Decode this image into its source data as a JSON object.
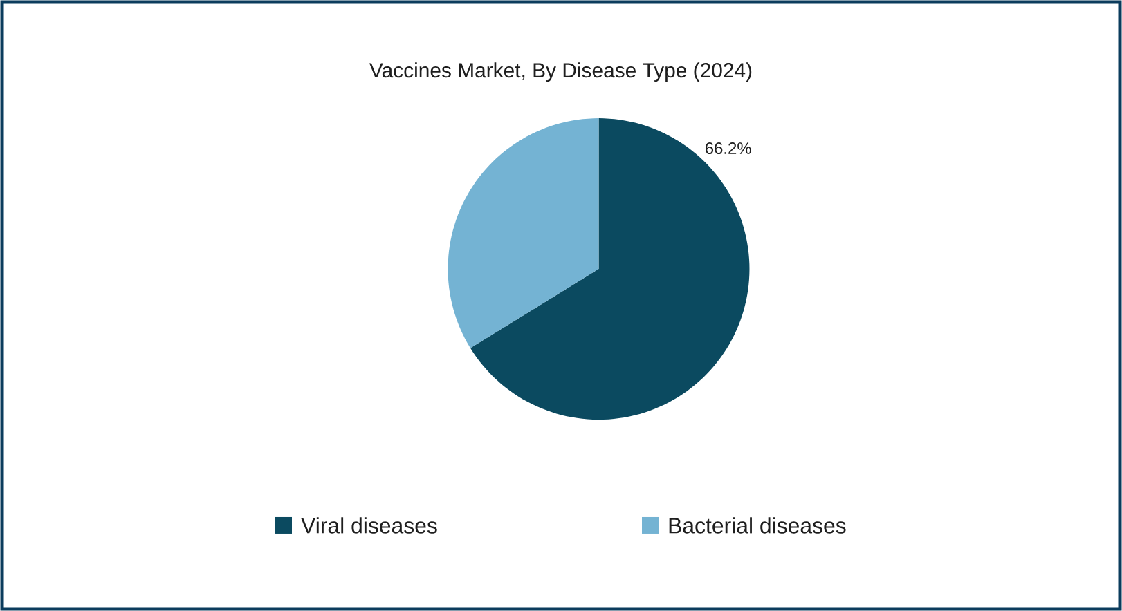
{
  "chart_data": {
    "type": "pie",
    "title": "Vaccines Market, By Disease Type (2024)",
    "categories": [
      "Viral diseases",
      "Bacterial diseases"
    ],
    "values": [
      66.2,
      33.8
    ],
    "colors": [
      "#0b4a60",
      "#74b3d3"
    ],
    "value_labels": [
      "66.2%",
      null
    ],
    "legend": "bottom"
  }
}
